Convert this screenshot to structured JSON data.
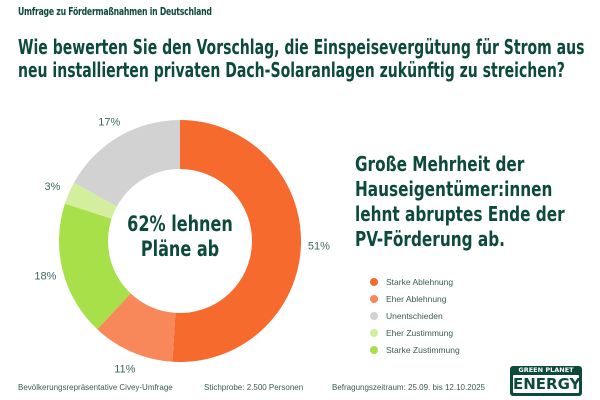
{
  "kicker": "Umfrage zu Fördermaßnahmen  in Deutschland",
  "question": [
    "Wie bewerten Sie den Vorschlag, die Einspeisevergütung für Strom aus",
    "neu installierten privaten Dach-Solaranlagen zukünftig zu streichen?"
  ],
  "headline": [
    "Große Mehrheit der",
    "Hauseigentümer:innen",
    "lehnt abruptes Ende der",
    "PV-Förderung ab."
  ],
  "center_label": [
    "62% lehnen",
    "Pläne ab"
  ],
  "footer": {
    "method": "Bevölkerungsrepräsentative Civey-Umfrage",
    "sample": "Stichprobe: 2.500 Personen",
    "period": "Befragungszeitraum: 25.09. bis 12.10.2025"
  },
  "logo": {
    "line1": "GREEN PLANET",
    "line2": "ENERGY"
  },
  "colors": {
    "text": "#0d4a3c"
  },
  "chart_data": {
    "type": "pie",
    "donut": true,
    "order_clockwise_from_top": [
      "Starke Ablehnung",
      "Eher Ablehnung",
      "Starke Zustimmung",
      "Eher Zustimmung",
      "Unentschieden"
    ],
    "slices": [
      {
        "name": "Starke Ablehnung",
        "value": 51,
        "label": "51%",
        "color": "#f66a2e"
      },
      {
        "name": "Eher Ablehnung",
        "value": 11,
        "label": "11%",
        "color": "#f8875a"
      },
      {
        "name": "Starke Zustimmung",
        "value": 18,
        "label": "18%",
        "color": "#a8e04a"
      },
      {
        "name": "Eher Zustimmung",
        "value": 3,
        "label": "3%",
        "color": "#d3ee9c"
      },
      {
        "name": "Unentschieden",
        "value": 17,
        "label": "17%",
        "color": "#d2d2d2"
      }
    ],
    "legend": [
      {
        "label": "Starke Ablehnung",
        "color": "#f66a2e"
      },
      {
        "label": "Eher Ablehnung",
        "color": "#f8875a"
      },
      {
        "label": "Unentschieden",
        "color": "#d2d2d2"
      },
      {
        "label": "Eher Zustimmung",
        "color": "#d3ee9c"
      },
      {
        "label": "Starke Zustimmung",
        "color": "#a8e04a"
      }
    ],
    "legend_position": "right"
  }
}
